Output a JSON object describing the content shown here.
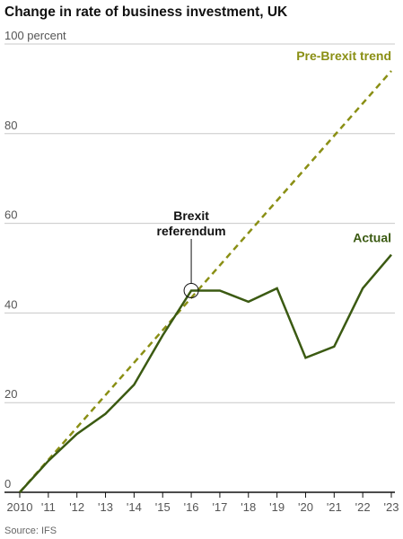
{
  "chart_data": {
    "type": "line",
    "title": "Change in rate of business investment, UK",
    "source": "Source: IFS",
    "x": [
      2010,
      2011,
      2012,
      2013,
      2014,
      2015,
      2016,
      2017,
      2018,
      2019,
      2020,
      2021,
      2022,
      2023
    ],
    "series": [
      {
        "name": "Pre-Brexit trend",
        "color": "#8a8f14",
        "dashed": true,
        "x": [
          2010,
          2023
        ],
        "values": [
          0,
          94
        ]
      },
      {
        "name": "Actual",
        "color": "#3b5a12",
        "dashed": false,
        "values": [
          0,
          7,
          13,
          17.5,
          24,
          35,
          45,
          45,
          42.5,
          45.5,
          30,
          32.5,
          45.5,
          53
        ]
      }
    ],
    "annotations": [
      {
        "text": [
          "Brexit",
          "referendum"
        ],
        "x": 2016,
        "y": 45
      }
    ],
    "xlim": [
      2010,
      2023
    ],
    "xticks": [
      {
        "value": 2010,
        "label": "2010"
      },
      {
        "value": 2011,
        "label": "'11"
      },
      {
        "value": 2012,
        "label": "'12"
      },
      {
        "value": 2013,
        "label": "'13"
      },
      {
        "value": 2014,
        "label": "'14"
      },
      {
        "value": 2015,
        "label": "'15"
      },
      {
        "value": 2016,
        "label": "'16"
      },
      {
        "value": 2017,
        "label": "'17"
      },
      {
        "value": 2018,
        "label": "'18"
      },
      {
        "value": 2019,
        "label": "'19"
      },
      {
        "value": 2020,
        "label": "'20"
      },
      {
        "value": 2021,
        "label": "'21"
      },
      {
        "value": 2022,
        "label": "'22"
      },
      {
        "value": 2023,
        "label": "'23"
      }
    ],
    "ylim": [
      0,
      100
    ],
    "yticks": [
      0,
      20,
      40,
      60,
      80,
      {
        "value": 100,
        "label": "100 percent"
      }
    ],
    "grid": true
  }
}
